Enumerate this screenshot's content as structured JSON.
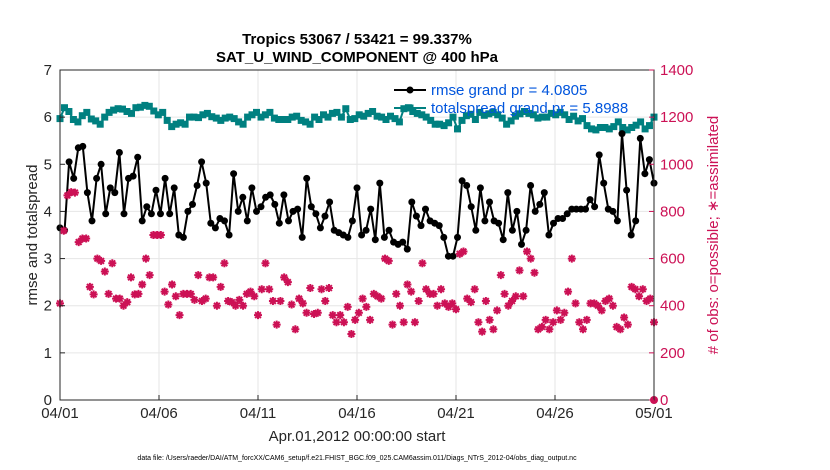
{
  "chart_data": {
    "type": "line",
    "title": "Tropics 53067 / 53421 = 99.337%",
    "subtitle": "SAT_U_WIND_COMPONENT @ 400 hPa",
    "xlabel": "Apr.01,2012 00:00:00 start",
    "ylabel_left": "rmse and totalspread",
    "ylabel_right": "# of obs: o=possible; ∗=assimilated",
    "footnote": "data file: /Users/raeder/DAI/ATM_forcXX/CAM6_setup/f.e21.FHIST_BGC.f09_025.CAM6assim.011/Diags_NTrS_2012-04/obs_diag_output.nc",
    "x_ticks": [
      "04/01",
      "04/06",
      "04/11",
      "04/16",
      "04/21",
      "04/26",
      "05/01"
    ],
    "x_range_days": [
      0,
      30
    ],
    "ylim_left": [
      0,
      7
    ],
    "ylim_right": [
      0,
      1400
    ],
    "y_ticks_left": [
      "0",
      "1",
      "2",
      "3",
      "4",
      "5",
      "6",
      "7"
    ],
    "y_ticks_right": [
      "0",
      "200",
      "400",
      "600",
      "800",
      "1000",
      "1200",
      "1400"
    ],
    "grid": true,
    "legend_position": "top-right",
    "colors": {
      "rmse": "#000000",
      "spread": "#008080",
      "obs": "#cc1155",
      "right_axis": "#cc1155",
      "legend_text": "#0055dd"
    },
    "series": [
      {
        "name": "rmse grand pr = 4.0805",
        "axis": "left",
        "values": [
          3.65,
          3.6,
          5.05,
          4.7,
          5.35,
          5.38,
          4.4,
          3.8,
          4.7,
          5.0,
          3.95,
          4.5,
          4.4,
          5.25,
          3.95,
          4.7,
          4.75,
          5.15,
          3.8,
          4.1,
          3.95,
          4.45,
          3.95,
          4.7,
          3.95,
          4.5,
          3.5,
          3.45,
          4.0,
          4.15,
          4.55,
          5.05,
          4.6,
          3.75,
          3.65,
          3.85,
          3.8,
          3.5,
          4.8,
          4.0,
          4.3,
          3.8,
          4.5,
          4.0,
          4.1,
          4.3,
          4.35,
          4.15,
          3.75,
          4.35,
          3.8,
          4.0,
          4.05,
          3.45,
          4.7,
          4.1,
          3.95,
          3.65,
          3.9,
          4.2,
          3.6,
          3.55,
          3.5,
          3.45,
          3.8,
          4.5,
          3.5,
          3.6,
          4.05,
          3.4,
          4.6,
          3.45,
          3.6,
          3.35,
          3.3,
          3.35,
          3.2,
          4.2,
          3.9,
          3.7,
          4.05,
          3.8,
          3.75,
          3.7,
          3.45,
          3.05,
          3.05,
          3.45,
          4.65,
          4.55,
          4.1,
          3.6,
          4.5,
          3.8,
          4.2,
          3.8,
          3.75,
          3.4,
          4.4,
          3.6,
          4.0,
          3.3,
          3.6,
          4.55,
          4.0,
          4.15,
          4.4,
          3.5,
          3.75,
          3.85,
          3.85,
          3.95,
          4.05,
          4.05,
          4.05,
          4.05,
          4.25,
          4.1,
          5.2,
          4.6,
          4.05,
          4.0,
          3.8,
          5.65,
          4.45,
          3.5,
          3.8,
          5.55,
          4.8,
          5.1,
          4.6
        ]
      },
      {
        "name": "totalspread grand pr = 5.8988",
        "axis": "left",
        "values": [
          5.97,
          6.2,
          6.12,
          5.95,
          5.9,
          6.03,
          6.1,
          5.96,
          5.92,
          5.85,
          6.0,
          6.1,
          6.15,
          6.18,
          6.17,
          6.12,
          6.08,
          6.2,
          6.21,
          6.25,
          6.23,
          6.13,
          6.05,
          6.1,
          5.93,
          5.8,
          5.85,
          5.88,
          5.85,
          6.0,
          6.0,
          5.99,
          6.05,
          6.08,
          6.01,
          5.98,
          5.93,
          5.98,
          6.0,
          5.97,
          5.9,
          5.85,
          6.0,
          6.05,
          6.1,
          6.0,
          6.05,
          6.1,
          5.98,
          5.95,
          5.95,
          5.95,
          6.0,
          6.02,
          5.93,
          5.9,
          5.85,
          6.0,
          5.95,
          6.05,
          6.0,
          6.08,
          6.1,
          6.0,
          6.18,
          5.95,
          5.97,
          6.05,
          6.02,
          6.08,
          6.12,
          6.02,
          6.0,
          5.95,
          6.02,
          5.97,
          5.9,
          6.18,
          6.2,
          6.12,
          6.08,
          6.05,
          6.0,
          5.93,
          5.85,
          5.85,
          5.82,
          5.88,
          6.0,
          5.75,
          5.93,
          6.03,
          6.06,
          5.95,
          6.1,
          6.04,
          6.07,
          6.1,
          6.05,
          5.98,
          5.85,
          5.92,
          6.02,
          6.07,
          6.12,
          6.08,
          6.05,
          5.98,
          6.0,
          6.0,
          6.08,
          6.05,
          6.1,
          6.05,
          5.95,
          6.02,
          5.92,
          5.97,
          5.82,
          5.75,
          5.73,
          5.78,
          5.78,
          5.75,
          5.8,
          5.9,
          5.78,
          5.73,
          5.78,
          5.83,
          5.9,
          5.75,
          5.82,
          6.0
        ]
      },
      {
        "name": "# of obs assimilated",
        "axis": "right",
        "values": [
          410,
          718,
          868,
          882,
          880,
          670,
          685,
          685,
          480,
          448,
          600,
          590,
          545,
          450,
          580,
          430,
          430,
          400,
          415,
          520,
          448,
          450,
          490,
          600,
          530,
          700,
          700,
          700,
          460,
          405,
          490,
          440,
          360,
          450,
          450,
          450,
          425,
          530,
          420,
          430,
          520,
          520,
          400,
          480,
          580,
          420,
          415,
          400,
          425,
          400,
          450,
          460,
          440,
          360,
          470,
          580,
          470,
          420,
          320,
          420,
          520,
          500,
          405,
          300,
          430,
          410,
          370,
          475,
          365,
          370,
          470,
          420,
          475,
          360,
          330,
          360,
          330,
          395,
          280,
          340,
          370,
          430,
          395,
          340,
          450,
          440,
          430,
          600,
          590,
          320,
          450,
          400,
          330,
          490,
          460,
          330,
          420,
          580,
          470,
          450,
          450,
          400,
          470,
          410,
          395,
          410,
          385,
          620,
          630,
          430,
          415,
          470,
          330,
          290,
          420,
          340,
          300,
          380,
          530,
          450,
          400,
          420,
          440,
          550,
          440,
          630,
          600,
          540,
          300,
          310,
          340,
          300,
          330,
          380,
          340,
          370,
          460,
          600,
          410,
          330,
          300,
          340,
          410,
          410,
          400,
          380,
          420,
          430,
          400,
          310,
          300,
          350,
          320,
          480,
          470,
          440,
          470,
          420,
          430,
          330
        ]
      },
      {
        "name": "# of obs possible",
        "axis": "right",
        "values": [
          0
        ]
      }
    ]
  }
}
